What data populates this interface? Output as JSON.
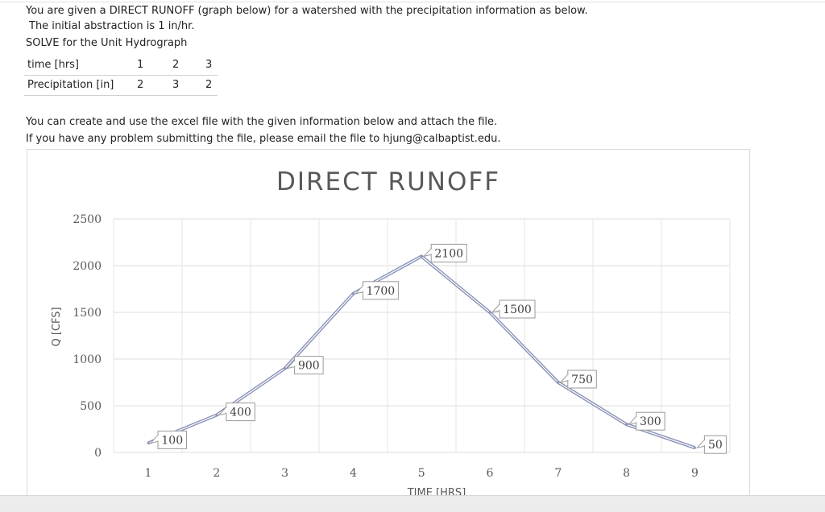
{
  "question": {
    "line1": "You are given a DIRECT RUNOFF (graph below) for a watershed with the precipitation information as below.",
    "line2": "The initial abstraction is 1 in/hr.",
    "line3": "SOLVE for the Unit Hydrograph",
    "line4": "You can create and use the excel file with the given information below and attach the file.",
    "line5": "If you have any problem submitting the file, please email the file to hjung@calbaptist.edu."
  },
  "precip_table": {
    "row1_label": "time [hrs]",
    "row1": [
      "1",
      "2",
      "3"
    ],
    "row2_label": "Precipitation [in]",
    "row2": [
      "2",
      "3",
      "2"
    ]
  },
  "chart_data": {
    "type": "line",
    "title": "DIRECT RUNOFF",
    "xlabel": "TIME [HRS]",
    "ylabel": "Q [CFS]",
    "x": [
      1,
      2,
      3,
      4,
      5,
      6,
      7,
      8,
      9
    ],
    "values": [
      100,
      400,
      900,
      1700,
      2100,
      1500,
      750,
      300,
      50
    ],
    "data_labels": [
      "100",
      "400",
      "900",
      "1700",
      "2100",
      "1500",
      "750",
      "300",
      "50"
    ],
    "x_ticks": [
      "1",
      "2",
      "3",
      "4",
      "5",
      "6",
      "7",
      "8",
      "9"
    ],
    "y_ticks": [
      "0",
      "500",
      "1000",
      "1500",
      "2000",
      "2500"
    ],
    "ylim": [
      0,
      2500
    ],
    "grid": true,
    "line_color": "#8b93b8"
  }
}
